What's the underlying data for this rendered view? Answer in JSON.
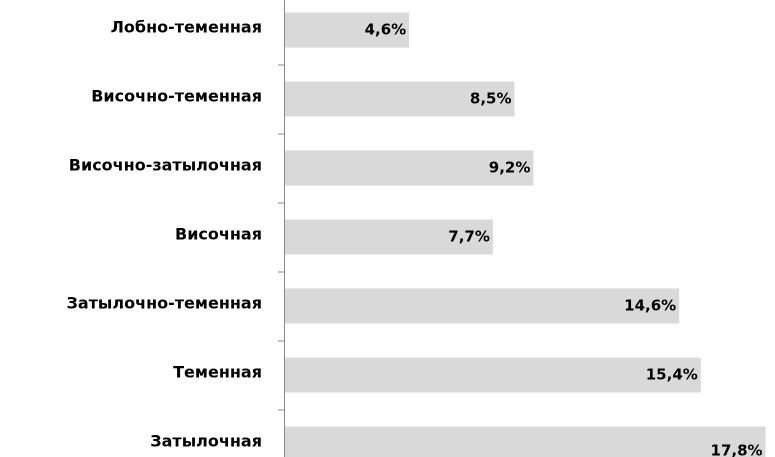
{
  "chart_data": {
    "type": "bar",
    "orientation": "horizontal",
    "categories": [
      "Лобно-теменная",
      "Височно-теменная",
      "Височно-затылочная",
      "Височная",
      "Затылочно-теменная",
      "Теменная",
      "Затылочная"
    ],
    "values": [
      4.6,
      8.5,
      9.2,
      7.7,
      14.6,
      15.4,
      17.8
    ],
    "value_labels": [
      "4,6%",
      "8,5%",
      "9,2%",
      "7,7%",
      "14,6%",
      "15,4%",
      "17,8%"
    ],
    "color": "#d9d9d9"
  }
}
